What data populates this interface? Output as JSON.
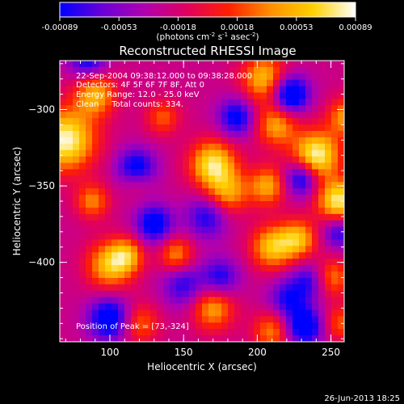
{
  "colorbar": {
    "ticks": [
      "-0.00089",
      "-0.00053",
      "-0.00018",
      "0.00018",
      "0.00053",
      "0.00089"
    ],
    "unit_parts": [
      "(photons cm",
      "-2",
      " s",
      "-1",
      " asec",
      "-2",
      ")"
    ],
    "colors": [
      "#0000ff",
      "#6a00d8",
      "#b000b0",
      "#e00060",
      "#ff2000",
      "#ff9000",
      "#ffd000",
      "#ffffff"
    ]
  },
  "chart_data": {
    "type": "heatmap",
    "title": "Reconstructed RHESSI Image",
    "xlabel": "Heliocentric X (arcsec)",
    "ylabel": "Heliocentric Y (arcsec)",
    "xlim": [
      66,
      259
    ],
    "ylim": [
      -452,
      -268
    ],
    "xticks": [
      100,
      150,
      200,
      250
    ],
    "yticks": [
      -300,
      -350,
      -400
    ],
    "annotations": [
      "22-Sep-2004 09:38:12.000 to 09:38:28.000",
      "Detectors: 4F 5F 6F 7F 8F, Att 0",
      "Energy Range: 12.0 - 25.0 keV",
      "Clean     Total counts: 334."
    ],
    "peak_label": "Position of Peak = [73,-324]",
    "sources": [
      {
        "x": 70,
        "y": -320,
        "v": 1.0,
        "s": 14
      },
      {
        "x": 90,
        "y": -290,
        "v": 0.7,
        "s": 10
      },
      {
        "x": 205,
        "y": -280,
        "v": 0.75,
        "s": 11
      },
      {
        "x": 213,
        "y": -310,
        "v": 0.65,
        "s": 10
      },
      {
        "x": 170,
        "y": -336,
        "v": 0.9,
        "s": 11
      },
      {
        "x": 180,
        "y": -355,
        "v": 0.6,
        "s": 10
      },
      {
        "x": 240,
        "y": -330,
        "v": 1.0,
        "s": 11
      },
      {
        "x": 255,
        "y": -360,
        "v": 0.95,
        "s": 10
      },
      {
        "x": 250,
        "y": -410,
        "v": 0.6,
        "s": 9
      },
      {
        "x": 207,
        "y": -350,
        "v": 0.65,
        "s": 9
      },
      {
        "x": 210,
        "y": -390,
        "v": 0.75,
        "s": 10
      },
      {
        "x": 228,
        "y": -385,
        "v": 0.7,
        "s": 9
      },
      {
        "x": 100,
        "y": -402,
        "v": 0.75,
        "s": 11
      },
      {
        "x": 112,
        "y": -395,
        "v": 0.55,
        "s": 8
      },
      {
        "x": 145,
        "y": -395,
        "v": 0.6,
        "s": 8
      },
      {
        "x": 118,
        "y": -345,
        "v": 0.55,
        "s": 8
      },
      {
        "x": 88,
        "y": -360,
        "v": 0.55,
        "s": 8
      },
      {
        "x": 136,
        "y": -305,
        "v": 0.45,
        "s": 8
      },
      {
        "x": 260,
        "y": -305,
        "v": 0.6,
        "s": 9
      },
      {
        "x": 170,
        "y": -430,
        "v": 0.65,
        "s": 10
      },
      {
        "x": 120,
        "y": -440,
        "v": 0.5,
        "s": 9
      },
      {
        "x": 210,
        "y": -445,
        "v": 0.55,
        "s": 9
      },
      {
        "x": 256,
        "y": -440,
        "v": 0.45,
        "s": 8
      },
      {
        "x": 118,
        "y": -340,
        "v": -1.0,
        "s": 9
      },
      {
        "x": 130,
        "y": -375,
        "v": -0.7,
        "s": 9
      },
      {
        "x": 166,
        "y": -370,
        "v": -0.55,
        "s": 10
      },
      {
        "x": 186,
        "y": -305,
        "v": -0.65,
        "s": 9
      },
      {
        "x": 222,
        "y": -290,
        "v": -0.95,
        "s": 9
      },
      {
        "x": 230,
        "y": -345,
        "v": -0.75,
        "s": 8
      },
      {
        "x": 85,
        "y": -268,
        "v": -0.6,
        "s": 9
      },
      {
        "x": 100,
        "y": -437,
        "v": -0.8,
        "s": 10
      },
      {
        "x": 150,
        "y": -415,
        "v": -0.5,
        "s": 10
      },
      {
        "x": 175,
        "y": -410,
        "v": -0.55,
        "s": 9
      },
      {
        "x": 236,
        "y": -412,
        "v": -0.55,
        "s": 9
      },
      {
        "x": 255,
        "y": -380,
        "v": -0.55,
        "s": 8
      },
      {
        "x": 220,
        "y": -424,
        "v": -0.5,
        "s": 9
      },
      {
        "x": 232,
        "y": -442,
        "v": -0.8,
        "s": 9
      }
    ]
  },
  "footer": {
    "timestamp": "26-Jun-2013 18:25"
  }
}
